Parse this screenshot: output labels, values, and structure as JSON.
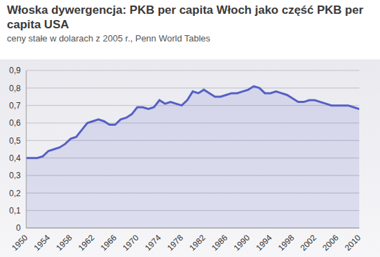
{
  "chart_data": {
    "type": "area",
    "title": "Włoska dywergencja: PKB per capita Włoch jako część PKB per capita USA",
    "subtitle": "ceny stałe w dolarach z 2005 r., Penn World Tables",
    "x": [
      1950,
      1951,
      1952,
      1953,
      1954,
      1955,
      1956,
      1957,
      1958,
      1959,
      1960,
      1961,
      1962,
      1963,
      1964,
      1965,
      1966,
      1967,
      1968,
      1969,
      1970,
      1971,
      1972,
      1973,
      1974,
      1975,
      1976,
      1977,
      1978,
      1979,
      1980,
      1981,
      1982,
      1983,
      1984,
      1985,
      1986,
      1987,
      1988,
      1989,
      1990,
      1991,
      1992,
      1993,
      1994,
      1995,
      1996,
      1997,
      1998,
      1999,
      2000,
      2001,
      2002,
      2003,
      2004,
      2005,
      2006,
      2007,
      2008,
      2009,
      2010
    ],
    "values": [
      0.4,
      0.4,
      0.4,
      0.41,
      0.44,
      0.45,
      0.46,
      0.48,
      0.51,
      0.52,
      0.56,
      0.6,
      0.61,
      0.62,
      0.61,
      0.59,
      0.59,
      0.62,
      0.63,
      0.65,
      0.69,
      0.69,
      0.68,
      0.69,
      0.73,
      0.71,
      0.72,
      0.71,
      0.7,
      0.73,
      0.78,
      0.77,
      0.79,
      0.77,
      0.75,
      0.75,
      0.76,
      0.77,
      0.77,
      0.78,
      0.79,
      0.81,
      0.8,
      0.77,
      0.77,
      0.78,
      0.77,
      0.76,
      0.74,
      0.72,
      0.72,
      0.73,
      0.73,
      0.72,
      0.71,
      0.7,
      0.7,
      0.7,
      0.7,
      0.69,
      0.68
    ],
    "color": "#5560c4",
    "xlim": [
      1950,
      2010
    ],
    "xticks": [
      1950,
      1954,
      1958,
      1962,
      1966,
      1970,
      1974,
      1978,
      1982,
      1986,
      1990,
      1994,
      1998,
      2002,
      2006,
      2010
    ],
    "ylim": [
      0,
      0.9
    ],
    "yticks": [
      0,
      {
        "value": 0.1,
        "label": "0,1"
      },
      {
        "value": 0.2,
        "label": "0,2"
      },
      {
        "value": 0.3,
        "label": "0,3"
      },
      {
        "value": 0.4,
        "label": "0,4"
      },
      {
        "value": 0.5,
        "label": "0,5"
      },
      {
        "value": 0.6,
        "label": "0,6"
      },
      {
        "value": 0.7,
        "label": "0,7"
      },
      {
        "value": 0.8,
        "label": "0,8"
      },
      {
        "value": 0.9,
        "label": "0,9"
      }
    ],
    "grid": true
  }
}
